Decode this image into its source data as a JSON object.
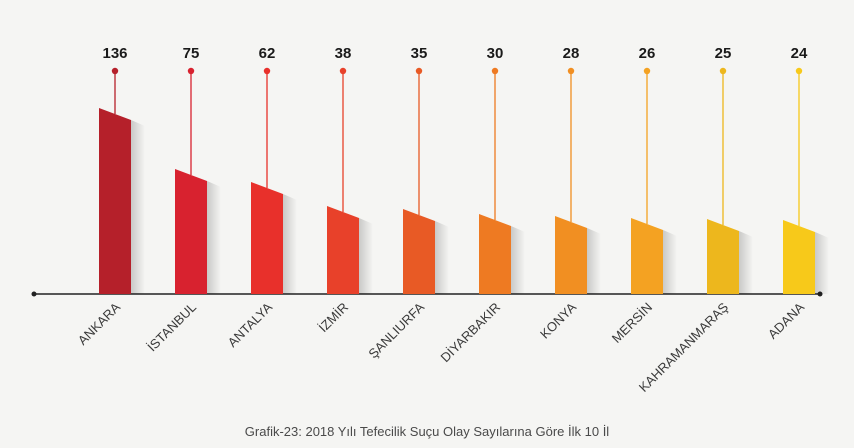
{
  "caption": "Grafik-23: 2018 Yılı Tefecilik Suçu Olay Sayılarına Göre İlk 10 İl",
  "chart_data": {
    "type": "bar",
    "categories": [
      "ANKARA",
      "İSTANBUL",
      "ANTALYA",
      "İZMİR",
      "ŞANLIURFA",
      "DİYARBAKIR",
      "KONYA",
      "MERSİN",
      "KAHRAMANMARAŞ",
      "ADANA"
    ],
    "values": [
      136,
      75,
      62,
      38,
      35,
      30,
      28,
      26,
      25,
      24
    ],
    "colors": [
      "#b5202a",
      "#d8222f",
      "#e8302b",
      "#e8412a",
      "#e85a25",
      "#ee7a22",
      "#f18f22",
      "#f4a222",
      "#edb71d",
      "#f7c91a"
    ],
    "title": "",
    "xlabel": "",
    "ylabel": ""
  }
}
